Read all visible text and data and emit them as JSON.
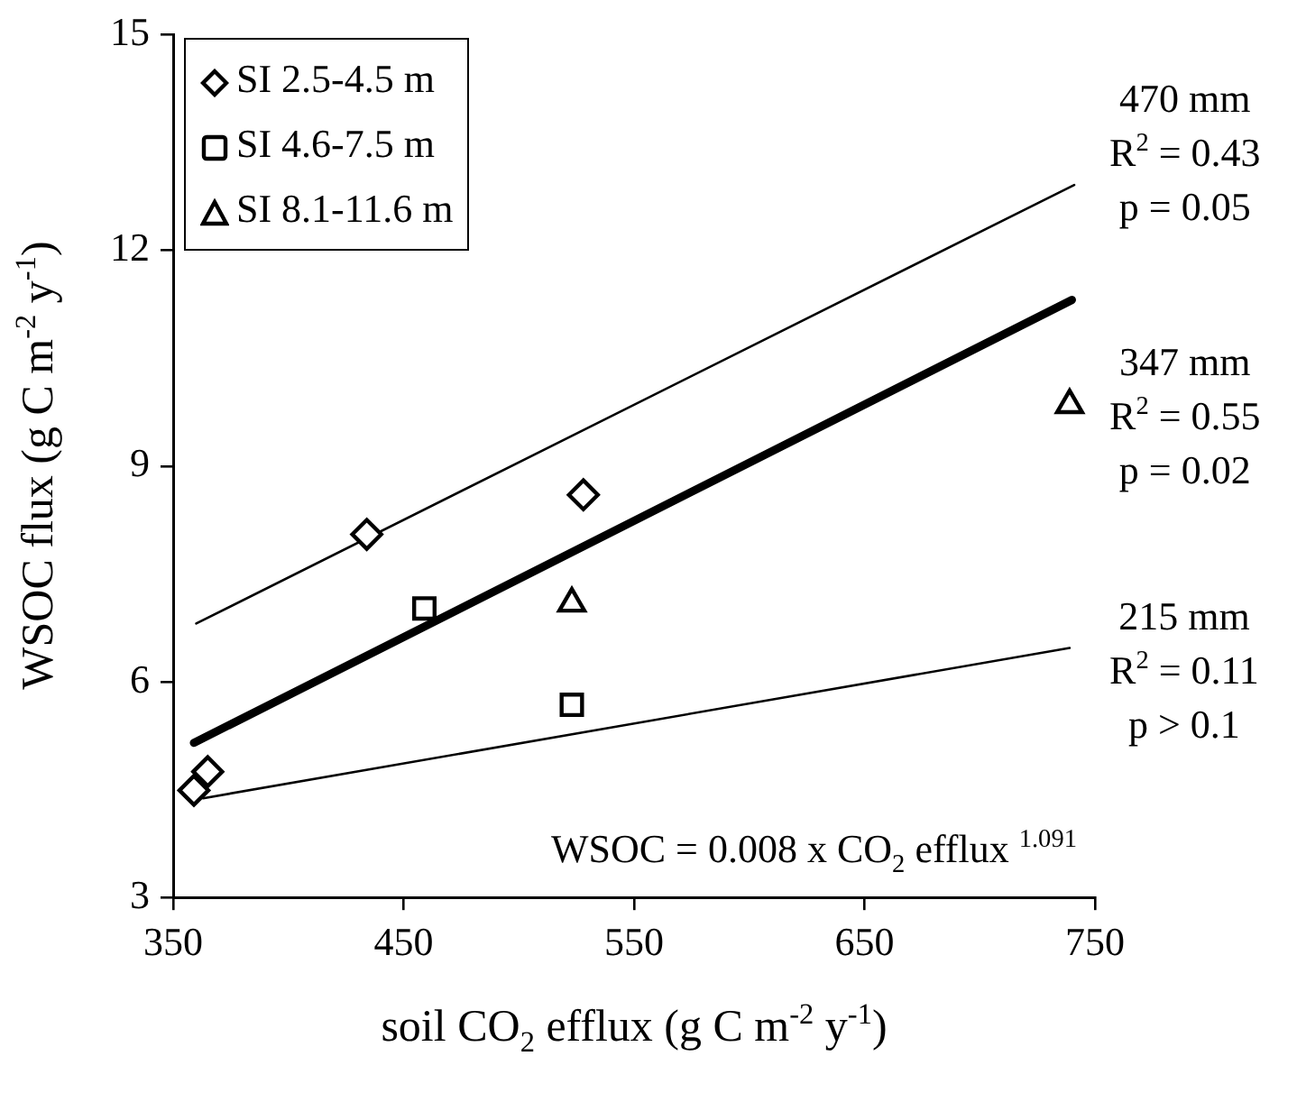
{
  "chart_data": {
    "type": "scatter",
    "xlabel": "soil CO$_{2}$ efflux (g C m$^{-2}$ y$^{-1}$)",
    "ylabel": "WSOC flux (g C m$^{-2}$ y$^{-1}$)",
    "xlim": [
      350,
      750
    ],
    "xticks": [
      350,
      450,
      550,
      650,
      750
    ],
    "ylim": [
      3,
      15
    ],
    "yticks": [
      3,
      6,
      9,
      12,
      15
    ],
    "grid": false,
    "legend": "top left",
    "series": [
      {
        "name": "SI 2.5-4.5 m",
        "marker": "diamond",
        "color": "#000000",
        "x": [
          359,
          365,
          434,
          528
        ],
        "values": [
          4.49,
          4.75,
          8.05,
          8.6
        ]
      },
      {
        "name": "SI 4.6-7.5 m",
        "marker": "square",
        "color": "#000000",
        "x": [
          459,
          523
        ],
        "values": [
          7.02,
          5.68
        ]
      },
      {
        "name": "SI 8.1-11.6 m",
        "marker": "triangle",
        "color": "#000000",
        "x": [
          523,
          739
        ],
        "values": [
          7.09,
          9.85
        ]
      },
      {
        "type": "line",
        "marker": "none",
        "color": "#000000",
        "x": [
          360,
          741
        ],
        "values": [
          6.81,
          12.91
        ]
      },
      {
        "type": "line",
        "marker": "none",
        "color": "#000000",
        "x": [
          359,
          740
        ],
        "values": [
          5.15,
          11.31
        ]
      },
      {
        "type": "line",
        "marker": "none",
        "color": "#000000",
        "x": [
          363,
          739
        ],
        "values": [
          4.38,
          6.47
        ]
      }
    ],
    "annotations": [
      "470 mm\nR$^{2}$ = 0.43\np = 0.05",
      "347 mm\nR$^{2}$ = 0.55\np = 0.02",
      "215 mm\nR$^{2}$ = 0.11\np > 0.1",
      "WSOC = 0.008 x CO$_{2}$ efflux $^{1.091}$"
    ]
  }
}
